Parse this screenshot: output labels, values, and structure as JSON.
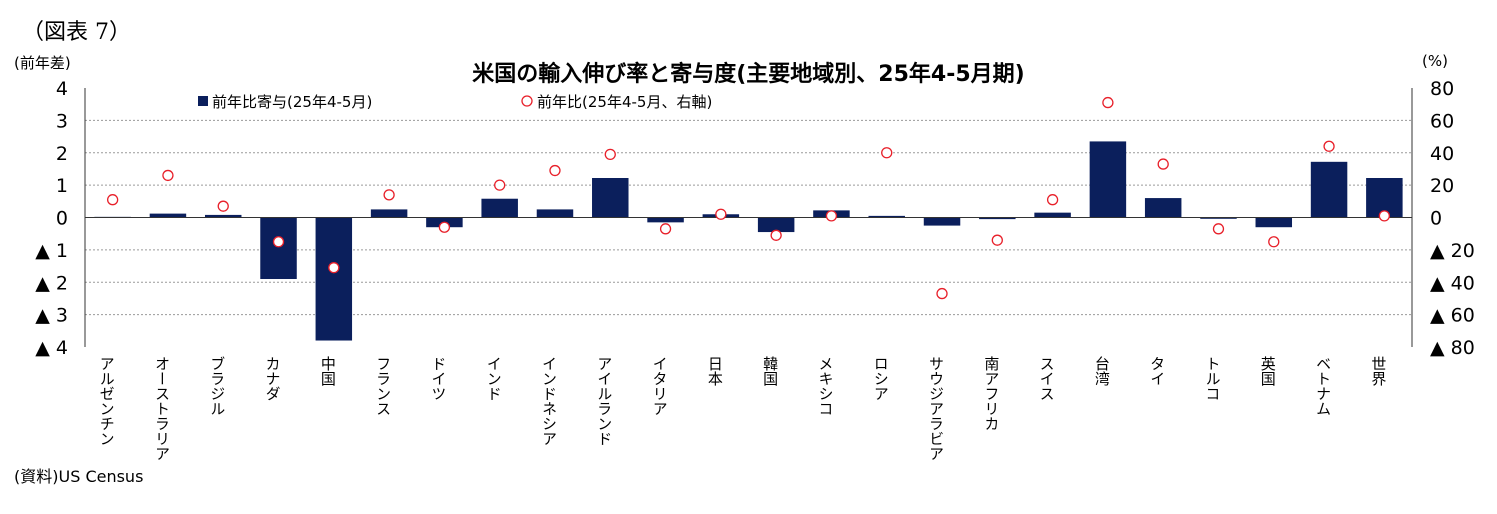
{
  "figure_label": "（図表 7）",
  "left_unit": "(前年差)",
  "right_unit": "(%)",
  "source": "(資料)US  Census",
  "colors": {
    "bar": "#0b1f5c",
    "marker": "#e8202a",
    "grid": "#9a9a9a"
  },
  "chart_data": {
    "type": "bar",
    "title": "米国の輸入伸び率と寄与度(主要地域別、25年4-5月期)",
    "ylim": [
      -4,
      4
    ],
    "y2lim": [
      -80,
      80
    ],
    "yticks": [
      "4",
      "3",
      "2",
      "1",
      "0",
      "▲ 1",
      "▲ 2",
      "▲ 3",
      "▲ 4"
    ],
    "y2ticks": [
      "80",
      "60",
      "40",
      "20",
      "0",
      "▲ 20",
      "▲ 40",
      "▲ 60",
      "▲ 80"
    ],
    "grid": true,
    "legend": "top",
    "categories": [
      "アルゼンチン",
      "オーストラリア",
      "ブラジル",
      "カナダ",
      "中国",
      "フランス",
      "ドイツ",
      "インド",
      "インドネシア",
      "アイルランド",
      "イタリア",
      "日本",
      "韓国",
      "メキシコ",
      "ロシア",
      "サウジアラビア",
      "南アフリカ",
      "スイス",
      "台湾",
      "タイ",
      "トルコ",
      "英国",
      "ベトナム",
      "世界"
    ],
    "series": [
      {
        "name": "前年比寄与(25年4-5月)",
        "type": "bar",
        "axis": "left",
        "values": [
          0.02,
          0.12,
          0.08,
          -1.9,
          -3.8,
          0.25,
          -0.3,
          0.58,
          0.25,
          1.22,
          -0.15,
          0.1,
          -0.45,
          0.22,
          0.05,
          -0.25,
          -0.05,
          0.15,
          2.35,
          0.6,
          -0.04,
          -0.3,
          1.72,
          1.22
        ]
      },
      {
        "name": "前年比(25年4-5月、右軸)",
        "type": "scatter",
        "axis": "right",
        "values": [
          11,
          26,
          7,
          -15,
          -31,
          14,
          -6,
          20,
          29,
          39,
          -7,
          2,
          -11,
          1,
          40,
          -47,
          -14,
          11,
          71,
          33,
          -7,
          -15,
          44,
          1
        ]
      }
    ]
  }
}
